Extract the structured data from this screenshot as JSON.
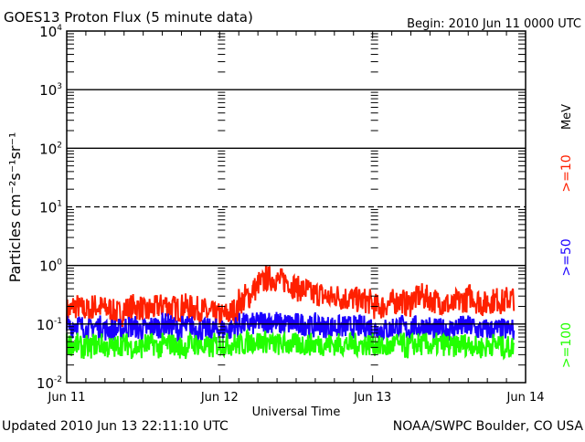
{
  "chart_data": {
    "type": "line",
    "title": "GOES13 Proton Flux (5 minute data)",
    "begin_label": "Begin: 2010 Jun 11 0000 UTC",
    "xlabel": "Universal Time",
    "ylabel": "Particles cm⁻²s⁻¹sr⁻¹",
    "yscale": "log",
    "ylim": [
      0.01,
      10000
    ],
    "ytick_labels": [
      {
        "base": "10",
        "exp": "-2",
        "value": 0.01
      },
      {
        "base": "10",
        "exp": "-1",
        "value": 0.1
      },
      {
        "base": "10",
        "exp": "0",
        "value": 1
      },
      {
        "base": "10",
        "exp": "1",
        "value": 10
      },
      {
        "base": "10",
        "exp": "2",
        "value": 100
      },
      {
        "base": "10",
        "exp": "3",
        "value": 1000
      },
      {
        "base": "10",
        "exp": "4",
        "value": 10000
      }
    ],
    "xlim_hours": [
      0,
      72
    ],
    "xtick_labels": [
      {
        "label": "Jun 11",
        "hour": 0
      },
      {
        "label": "Jun 12",
        "hour": 24
      },
      {
        "label": "Jun 13",
        "hour": 48
      },
      {
        "label": "Jun 14",
        "hour": 72
      }
    ],
    "units_label": "MeV",
    "series": [
      {
        "name": ">=10",
        "color": "#ff2000",
        "hourly_values": [
          0.17,
          0.2,
          0.18,
          0.17,
          0.2,
          0.19,
          0.18,
          0.16,
          0.15,
          0.18,
          0.2,
          0.19,
          0.16,
          0.18,
          0.2,
          0.22,
          0.19,
          0.18,
          0.2,
          0.19,
          0.18,
          0.17,
          0.15,
          0.14,
          0.14,
          0.15,
          0.17,
          0.25,
          0.3,
          0.4,
          0.5,
          0.6,
          0.6,
          0.55,
          0.55,
          0.45,
          0.4,
          0.38,
          0.32,
          0.33,
          0.3,
          0.28,
          0.3,
          0.28,
          0.27,
          0.26,
          0.25,
          0.24,
          0.2,
          0.2,
          0.22,
          0.24,
          0.25,
          0.22,
          0.27,
          0.3,
          0.28,
          0.25,
          0.24,
          0.22,
          0.2,
          0.24,
          0.26,
          0.3,
          0.25,
          0.22,
          0.25,
          0.26,
          0.24,
          0.27,
          0.28
        ]
      },
      {
        "name": ">=50",
        "color": "#1a00ff",
        "hourly_values": [
          0.09,
          0.1,
          0.09,
          0.08,
          0.09,
          0.09,
          0.08,
          0.08,
          0.08,
          0.09,
          0.09,
          0.08,
          0.08,
          0.09,
          0.09,
          0.1,
          0.09,
          0.08,
          0.09,
          0.09,
          0.08,
          0.08,
          0.08,
          0.08,
          0.08,
          0.08,
          0.09,
          0.1,
          0.1,
          0.1,
          0.11,
          0.11,
          0.11,
          0.1,
          0.1,
          0.1,
          0.1,
          0.1,
          0.09,
          0.1,
          0.09,
          0.09,
          0.09,
          0.09,
          0.09,
          0.09,
          0.09,
          0.09,
          0.08,
          0.08,
          0.08,
          0.09,
          0.09,
          0.08,
          0.09,
          0.09,
          0.09,
          0.08,
          0.08,
          0.08,
          0.08,
          0.09,
          0.09,
          0.09,
          0.08,
          0.08,
          0.08,
          0.08,
          0.08,
          0.08,
          0.08
        ]
      },
      {
        "name": ">=100",
        "color": "#22ff00",
        "hourly_values": [
          0.045,
          0.045,
          0.04,
          0.04,
          0.045,
          0.045,
          0.04,
          0.04,
          0.045,
          0.045,
          0.04,
          0.04,
          0.045,
          0.045,
          0.04,
          0.045,
          0.045,
          0.04,
          0.04,
          0.045,
          0.045,
          0.04,
          0.04,
          0.045,
          0.045,
          0.045,
          0.045,
          0.045,
          0.05,
          0.05,
          0.05,
          0.05,
          0.045,
          0.045,
          0.045,
          0.045,
          0.045,
          0.045,
          0.045,
          0.045,
          0.045,
          0.045,
          0.045,
          0.045,
          0.045,
          0.045,
          0.045,
          0.045,
          0.045,
          0.04,
          0.04,
          0.045,
          0.045,
          0.04,
          0.045,
          0.045,
          0.045,
          0.04,
          0.045,
          0.045,
          0.04,
          0.045,
          0.045,
          0.045,
          0.04,
          0.04,
          0.045,
          0.045,
          0.04,
          0.04,
          0.045
        ]
      }
    ]
  },
  "footer": {
    "updated": "Updated 2010 Jun 13 22:11:10 UTC",
    "source": "NOAA/SWPC Boulder, CO USA"
  }
}
